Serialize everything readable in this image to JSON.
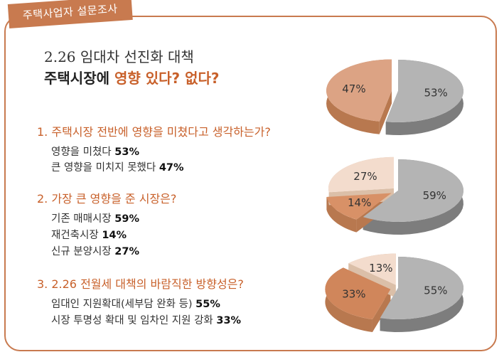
{
  "tag": "주택사업자 설문조사",
  "title": {
    "line1": "2.26 임대차 선진화 대책",
    "line2_prefix": "주택시장에 ",
    "line2_highlight": "영향 있다? 없다?"
  },
  "questions": [
    {
      "label": "1. 주택시장 전반에 영향을 미쳤다고 생각하는가?",
      "answers": [
        {
          "text": "영향을 미쳤다 ",
          "value": "53%"
        },
        {
          "text": "큰 영향을 미치지 못했다 ",
          "value": "47%"
        }
      ]
    },
    {
      "label": "2. 가장 큰 영향을 준 시장은?",
      "answers": [
        {
          "text": "기존 매매시장 ",
          "value": "59%"
        },
        {
          "text": "재건축시장 ",
          "value": "14%"
        },
        {
          "text": "신규 분양시장 ",
          "value": "27%"
        }
      ]
    },
    {
      "label": "3. 2.26 전월세 대책의 바람직한 방향성은?",
      "answers": [
        {
          "text": "임대인 지원확대(세부담 완화 등) ",
          "value": "55%"
        },
        {
          "text": "시장 투명성 확대 및 임차인 지원 강화 ",
          "value": "33%"
        }
      ]
    }
  ],
  "chart_data": [
    {
      "type": "pie",
      "slices": [
        {
          "label": "53%",
          "value": 53,
          "color": "#b4b4b4",
          "side": "#7d7d7d"
        },
        {
          "label": "47%",
          "value": 47,
          "color": "#dca384",
          "side": "#b8784f"
        }
      ]
    },
    {
      "type": "pie",
      "slices": [
        {
          "label": "59%",
          "value": 59,
          "color": "#b4b4b4",
          "side": "#7d7d7d"
        },
        {
          "label": "14%",
          "value": 14,
          "color": "#d89167",
          "side": "#b8784f"
        },
        {
          "label": "27%",
          "value": 27,
          "color": "#f3dccd",
          "side": "#dbbfa8"
        }
      ]
    },
    {
      "type": "pie",
      "slices": [
        {
          "label": "55%",
          "value": 55,
          "color": "#b4b4b4",
          "side": "#7d7d7d"
        },
        {
          "label": "33%",
          "value": 33,
          "color": "#d0865b",
          "side": "#b8784f"
        },
        {
          "label": "13%",
          "value": 13,
          "color": "#f3dccd",
          "side": "#dbbfa8"
        }
      ]
    }
  ]
}
